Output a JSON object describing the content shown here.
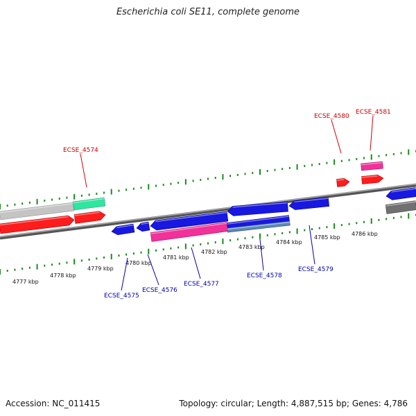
{
  "title": "Escherichia coli SE11, complete genome",
  "accession": "Accession: NC_011415",
  "topology": "Topology: circular; Length: 4,887,515 bp; Genes: 4,786",
  "colors": {
    "red": "#ff1c1c",
    "blue": "#1818e0",
    "pink": "#f0329a",
    "teal": "#2ee6a0",
    "lightgray": "#c4c4c4",
    "darkgray": "#707070",
    "steel": "#5a88b8",
    "tick": "#1a8a1a",
    "redLabel": "#cc0000",
    "blueLabel": "#0000aa"
  },
  "ticks": [
    "4777 kbp",
    "4778 kbp",
    "4779 kbp",
    "4780 kbp",
    "4781 kbp",
    "4782 kbp",
    "4783 kbp",
    "4784 kbp",
    "4785 kbp",
    "4786 kbp"
  ],
  "genes": [
    "ECSE_4574",
    "ECSE_4575",
    "ECSE_4576",
    "ECSE_4577",
    "ECSE_4578",
    "ECSE_4579",
    "ECSE_4580",
    "ECSE_4581"
  ]
}
